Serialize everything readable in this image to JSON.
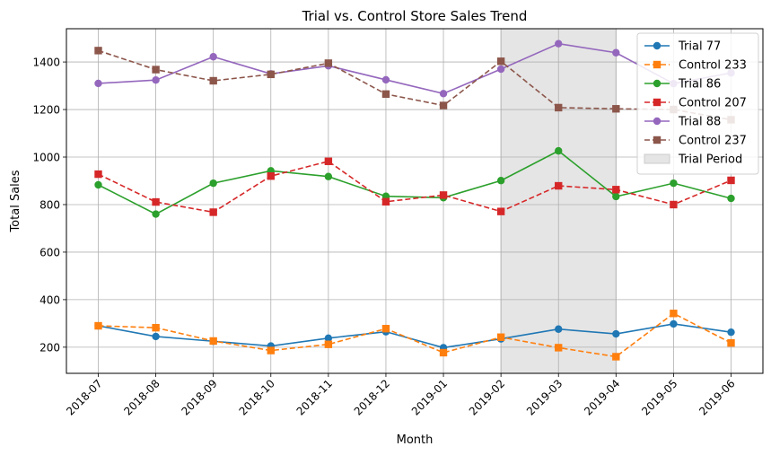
{
  "chart_data": {
    "type": "line",
    "title": "Trial vs. Control Store Sales Trend",
    "xlabel": "Month",
    "ylabel": "Total Sales",
    "categories": [
      "2018-07",
      "2018-08",
      "2018-09",
      "2018-10",
      "2018-11",
      "2018-12",
      "2019-01",
      "2019-02",
      "2019-03",
      "2019-04",
      "2019-05",
      "2019-06"
    ],
    "ylim": [
      90,
      1540
    ],
    "yticks": [
      200,
      400,
      600,
      800,
      1000,
      1200,
      1400
    ],
    "grid": true,
    "legend_position": "top-right",
    "shaded_region": {
      "label": "Trial Period",
      "from": "2019-02",
      "to": "2019-04",
      "color": "#e5e5e5"
    },
    "series": [
      {
        "name": "Trial 77",
        "color": "#1f77b4",
        "style": "solid",
        "marker": "circle",
        "values": [
          290,
          245,
          225,
          205,
          238,
          265,
          198,
          235,
          276,
          256,
          298,
          263
        ]
      },
      {
        "name": "Control 233",
        "color": "#ff7f0e",
        "style": "dashed",
        "marker": "square",
        "values": [
          290,
          282,
          226,
          186,
          212,
          278,
          177,
          242,
          198,
          160,
          342,
          218
        ]
      },
      {
        "name": "Trial 86",
        "color": "#2ca02c",
        "style": "solid",
        "marker": "circle",
        "values": [
          883,
          760,
          890,
          942,
          918,
          835,
          829,
          901,
          1026,
          834,
          890,
          826
        ]
      },
      {
        "name": "Control 207",
        "color": "#d62728",
        "style": "dashed",
        "marker": "square",
        "values": [
          928,
          811,
          768,
          920,
          982,
          812,
          840,
          771,
          879,
          863,
          800,
          902
        ]
      },
      {
        "name": "Trial 88",
        "color": "#9467bd",
        "style": "solid",
        "marker": "circle",
        "values": [
          1310,
          1324,
          1422,
          1350,
          1384,
          1325,
          1267,
          1370,
          1477,
          1439,
          1309,
          1354
        ]
      },
      {
        "name": "Control 237",
        "color": "#8c564b",
        "style": "dashed",
        "marker": "square",
        "values": [
          1448,
          1368,
          1321,
          1348,
          1395,
          1265,
          1217,
          1403,
          1208,
          1203,
          1200,
          1157
        ]
      }
    ]
  }
}
